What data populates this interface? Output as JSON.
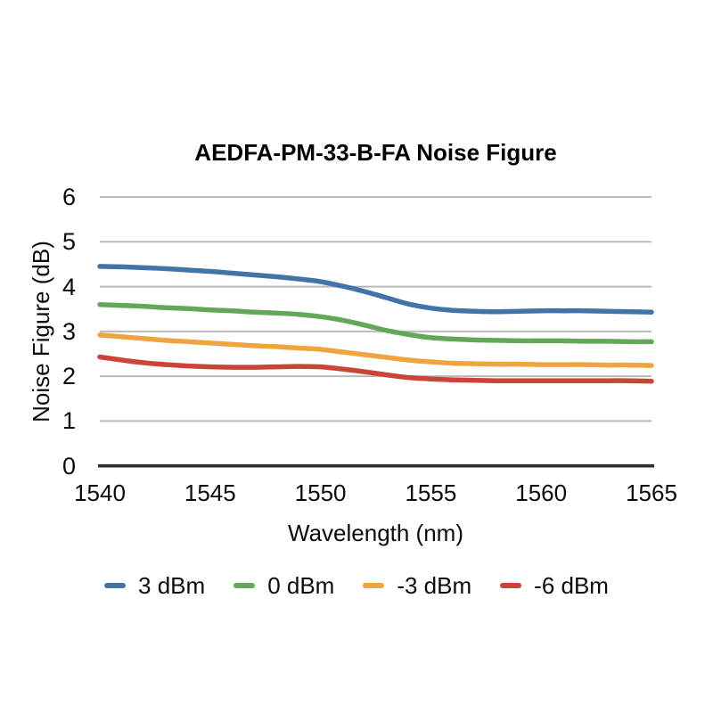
{
  "page": {
    "background": "#ffffff"
  },
  "chart_data": {
    "type": "line",
    "title": "AEDFA-PM-33-B-FA Noise Figure",
    "xlabel": "Wavelength (nm)",
    "ylabel": "Noise Figure (dB)",
    "xlim": [
      1540,
      1565
    ],
    "ylim": [
      0,
      6
    ],
    "x_ticks": [
      1540,
      1545,
      1550,
      1555,
      1560,
      1565
    ],
    "y_ticks": [
      6,
      5,
      4,
      3,
      2,
      1,
      0
    ],
    "grid": true,
    "legend_position": "bottom",
    "colors": {
      "gridline": "#b9b9b9",
      "axis_line": "#2e2e2e",
      "text": "#0b0b0b"
    },
    "x": [
      1540,
      1541,
      1542,
      1543,
      1544,
      1545,
      1546,
      1547,
      1548,
      1549,
      1550,
      1551,
      1552,
      1553,
      1554,
      1555,
      1556,
      1557,
      1558,
      1559,
      1560,
      1561,
      1562,
      1563,
      1564,
      1565
    ],
    "series": [
      {
        "name": "3 dBm",
        "color": "#4274a8",
        "values": [
          4.45,
          4.44,
          4.42,
          4.4,
          4.37,
          4.34,
          4.3,
          4.26,
          4.22,
          4.17,
          4.11,
          4.01,
          3.89,
          3.75,
          3.61,
          3.52,
          3.47,
          3.45,
          3.44,
          3.45,
          3.46,
          3.46,
          3.46,
          3.45,
          3.44,
          3.43
        ]
      },
      {
        "name": "0 dBm",
        "color": "#64a65a",
        "values": [
          3.6,
          3.58,
          3.56,
          3.53,
          3.51,
          3.48,
          3.46,
          3.43,
          3.41,
          3.38,
          3.33,
          3.25,
          3.14,
          3.02,
          2.93,
          2.86,
          2.83,
          2.81,
          2.8,
          2.79,
          2.79,
          2.79,
          2.78,
          2.78,
          2.77,
          2.77
        ]
      },
      {
        "name": "-3 dBm",
        "color": "#efa43f",
        "values": [
          2.92,
          2.88,
          2.84,
          2.8,
          2.77,
          2.74,
          2.71,
          2.68,
          2.66,
          2.63,
          2.6,
          2.54,
          2.48,
          2.42,
          2.36,
          2.32,
          2.29,
          2.28,
          2.27,
          2.27,
          2.26,
          2.26,
          2.26,
          2.25,
          2.25,
          2.24
        ]
      },
      {
        "name": "-6 dBm",
        "color": "#cb4437",
        "values": [
          2.43,
          2.36,
          2.3,
          2.26,
          2.23,
          2.21,
          2.2,
          2.2,
          2.21,
          2.22,
          2.21,
          2.16,
          2.1,
          2.03,
          1.97,
          1.94,
          1.92,
          1.91,
          1.9,
          1.9,
          1.9,
          1.9,
          1.9,
          1.9,
          1.9,
          1.89
        ]
      }
    ]
  }
}
